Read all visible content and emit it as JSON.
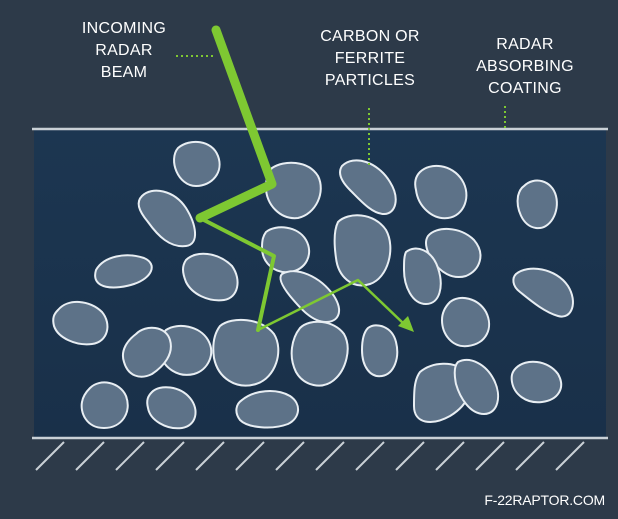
{
  "labels": {
    "incoming_line1": "INCOMING",
    "incoming_line2": "RADAR",
    "incoming_line3": "BEAM",
    "particles_line1": "CARBON OR",
    "particles_line2": "FERRITE",
    "particles_line3": "PARTICLES",
    "coating_line1": "RADAR",
    "coating_line2": "ABSORBING",
    "coating_line3": "COATING"
  },
  "credit": "F-22RAPTOR.COM",
  "colors": {
    "background": "#2d3a49",
    "coating": "#1b3550",
    "particle_fill": "#5d7288",
    "particle_stroke": "#e8eef3",
    "beam": "#7ec832",
    "leader": "#7ec832",
    "surface_line": "#c9d0d6"
  }
}
